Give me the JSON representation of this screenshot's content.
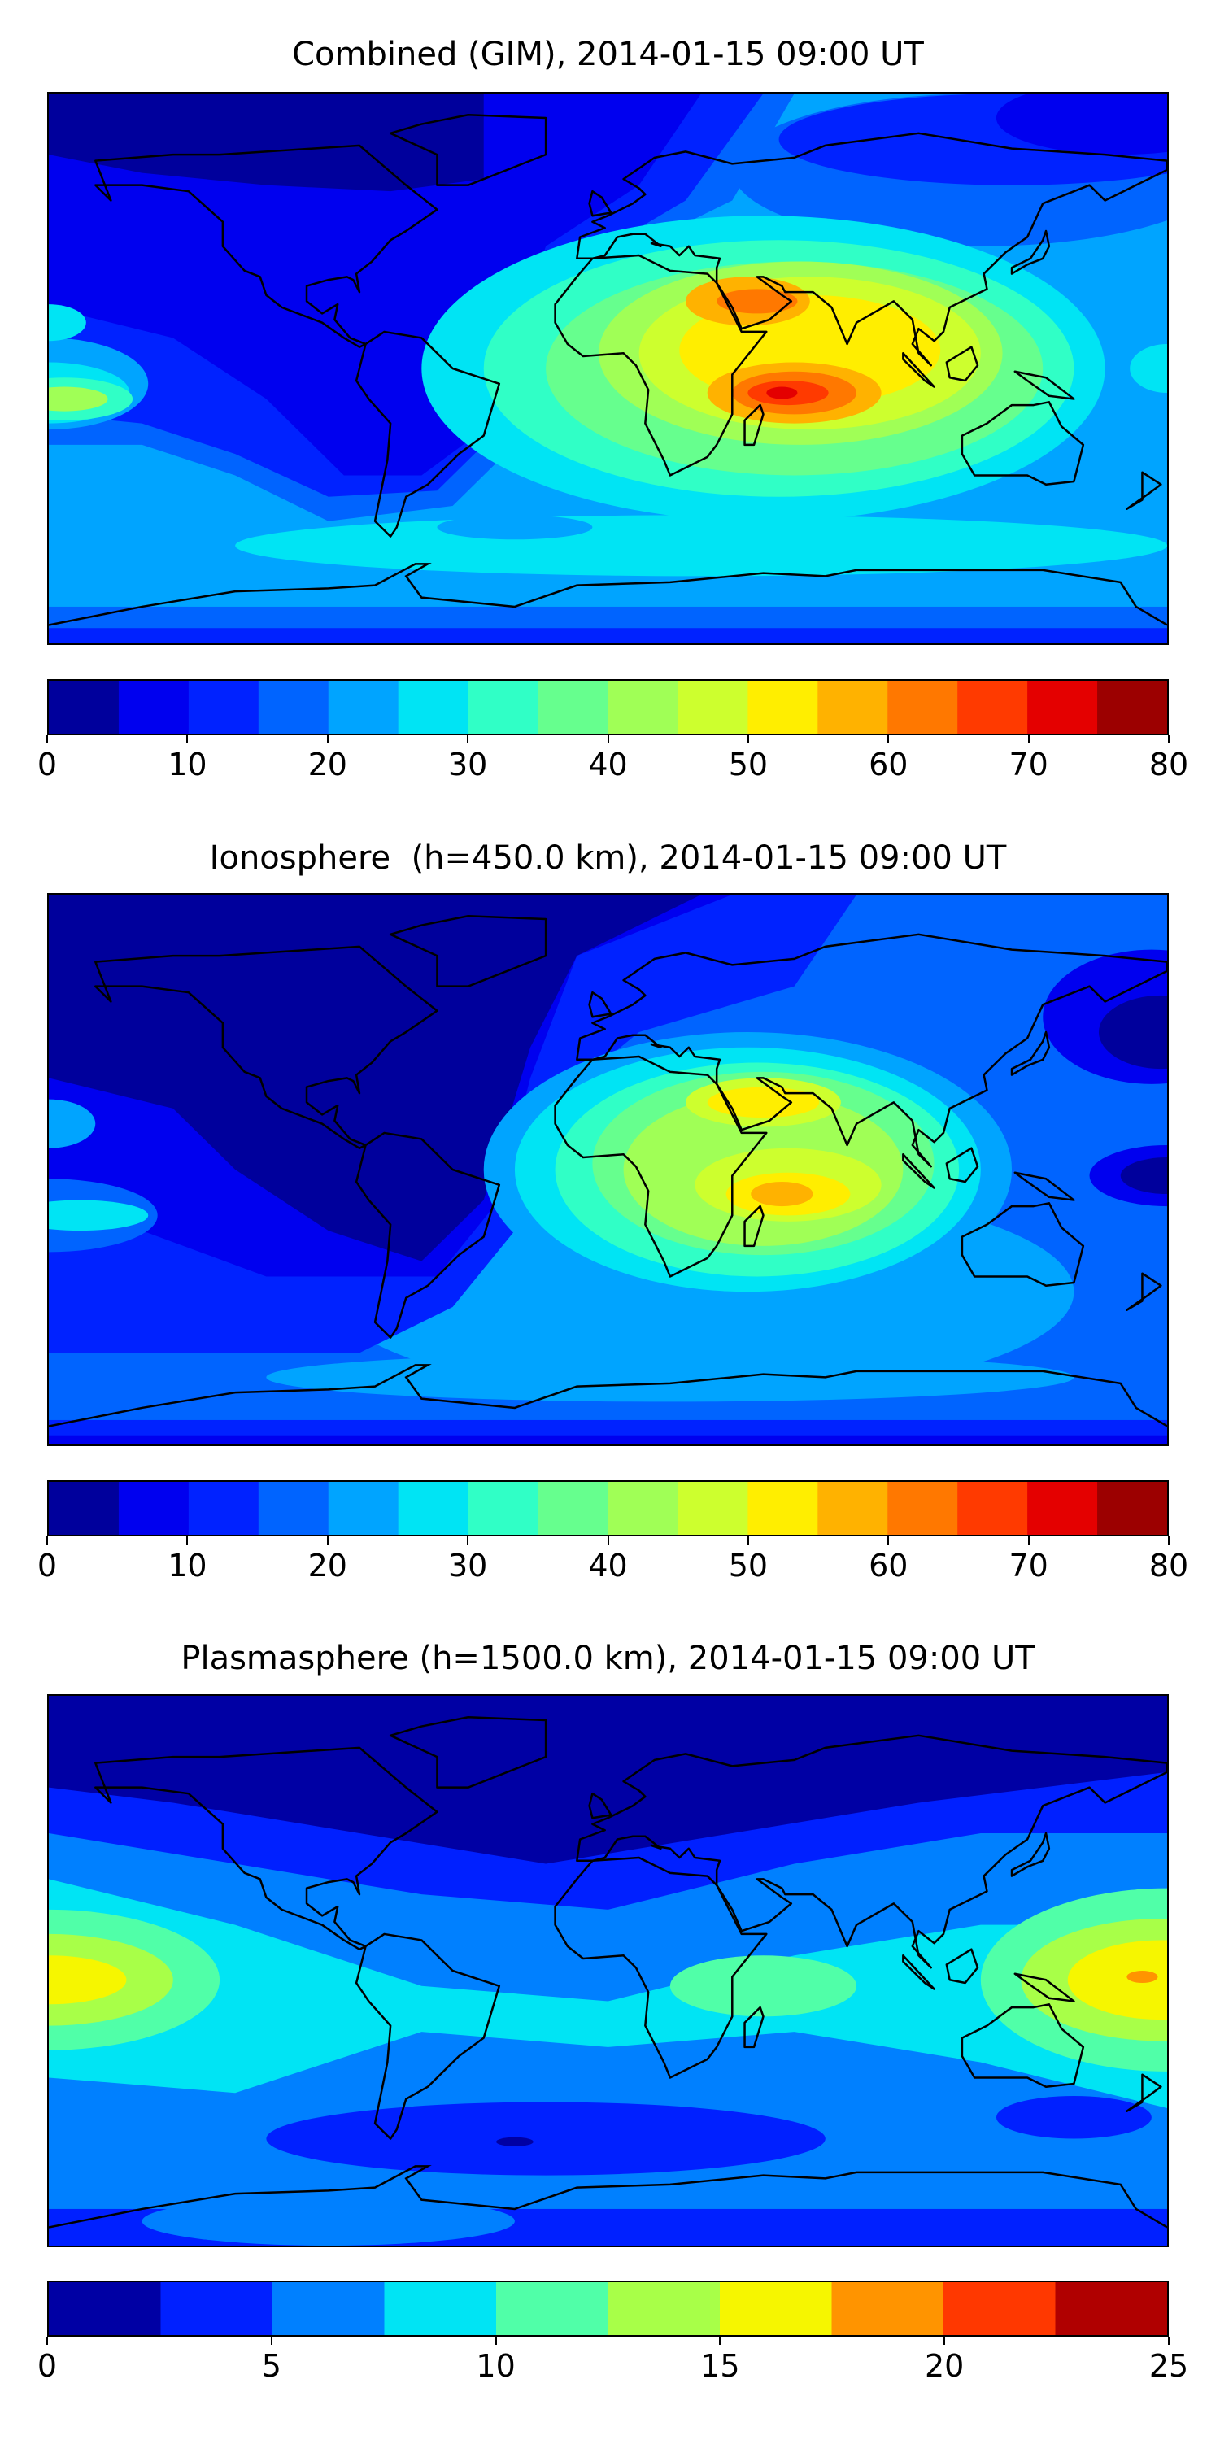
{
  "chart_data": [
    {
      "type": "heatmap",
      "title": "Combined (GIM), 2014-01-15 09:00 UT",
      "projection": "equirectangular world map with coastlines",
      "colorbar": {
        "levels": [
          0,
          5,
          10,
          15,
          20,
          25,
          30,
          35,
          40,
          45,
          50,
          55,
          60,
          65,
          70,
          75,
          80
        ],
        "colors": [
          "#00009c",
          "#0000ef",
          "#0022ff",
          "#0064ff",
          "#00a4ff",
          "#00e4f4",
          "#30ffc6",
          "#66ff8e",
          "#a0ff56",
          "#cdff2e",
          "#ffee00",
          "#ffb200",
          "#ff7800",
          "#ff3a00",
          "#e40000",
          "#9c0000"
        ],
        "ticks": [
          "0",
          "10",
          "20",
          "30",
          "40",
          "50",
          "60",
          "70",
          "80"
        ]
      },
      "max_region": "Indian Ocean east of Madagascar (~70-75)"
    },
    {
      "type": "heatmap",
      "title": "Ionosphere  (h=450.0 km), 2014-01-15 09:00 UT",
      "projection": "equirectangular world map with coastlines",
      "colorbar": {
        "levels": [
          0,
          5,
          10,
          15,
          20,
          25,
          30,
          35,
          40,
          45,
          50,
          55,
          60,
          65,
          70,
          75,
          80
        ],
        "colors": [
          "#00009c",
          "#0000ef",
          "#0022ff",
          "#0064ff",
          "#00a4ff",
          "#00e4f4",
          "#30ffc6",
          "#66ff8e",
          "#a0ff56",
          "#cdff2e",
          "#ffee00",
          "#ffb200",
          "#ff7800",
          "#ff3a00",
          "#e40000",
          "#9c0000"
        ],
        "ticks": [
          "0",
          "10",
          "20",
          "30",
          "40",
          "50",
          "60",
          "70",
          "80"
        ]
      },
      "max_region": "Indian Ocean east of Madagascar (~55-60)"
    },
    {
      "type": "heatmap",
      "title": "Plasmasphere (h=1500.0 km), 2014-01-15 09:00 UT",
      "projection": "equirectangular world map with coastlines",
      "colorbar": {
        "levels": [
          0,
          2.5,
          5,
          7.5,
          10,
          12.5,
          15,
          17.5,
          20,
          22.5,
          25
        ],
        "colors": [
          "#0000a4",
          "#0020ff",
          "#0080ff",
          "#00e4f4",
          "#50ffa8",
          "#a8ff48",
          "#f6f600",
          "#ff9400",
          "#ff3800",
          "#b00000"
        ],
        "ticks": [
          "0",
          "5",
          "10",
          "15",
          "20",
          "25"
        ]
      },
      "max_region": "Western Pacific near New Guinea (~17.5-20)"
    }
  ]
}
